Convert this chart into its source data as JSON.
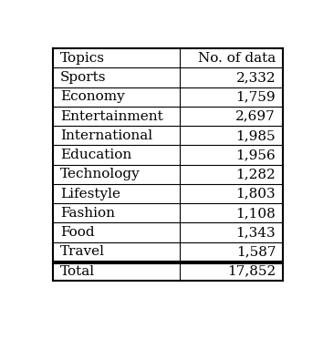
{
  "col_headers": [
    "Topics",
    "No. of data"
  ],
  "rows": [
    [
      "Sports",
      "2,332"
    ],
    [
      "Economy",
      "1,759"
    ],
    [
      "Entertainment",
      "2,697"
    ],
    [
      "International",
      "1,985"
    ],
    [
      "Education",
      "1,956"
    ],
    [
      "Technology",
      "1,282"
    ],
    [
      "Lifestyle",
      "1,803"
    ],
    [
      "Fashion",
      "1,108"
    ],
    [
      "Food",
      "1,343"
    ],
    [
      "Travel",
      "1,587"
    ]
  ],
  "total_row": [
    "Total",
    "17,852"
  ],
  "bg_color": "#ffffff",
  "text_color": "#000000",
  "font_size": 11
}
